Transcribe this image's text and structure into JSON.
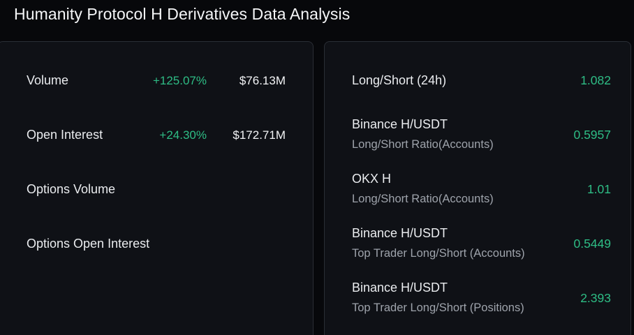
{
  "header": {
    "title": "Humanity Protocol H Derivatives Data Analysis"
  },
  "colors": {
    "positive": "#2ebd85",
    "background": "#07080b",
    "panel": "#0f1116",
    "text_secondary": "#9ea3ab"
  },
  "market": {
    "rows": [
      {
        "label": "Volume",
        "change": "+125.07%",
        "value": "$76.13M"
      },
      {
        "label": "Open Interest",
        "change": "+24.30%",
        "value": "$172.71M"
      },
      {
        "label": "Options Volume",
        "change": "",
        "value": ""
      },
      {
        "label": "Options Open Interest",
        "change": "",
        "value": ""
      }
    ]
  },
  "ratios": {
    "rows": [
      {
        "title": "Long/Short (24h)",
        "subtitle": "",
        "value": "1.082"
      },
      {
        "title": "Binance H/USDT",
        "subtitle": "Long/Short Ratio(Accounts)",
        "value": "0.5957"
      },
      {
        "title": "OKX H",
        "subtitle": "Long/Short Ratio(Accounts)",
        "value": "1.01"
      },
      {
        "title": "Binance H/USDT",
        "subtitle": "Top Trader Long/Short (Accounts)",
        "value": "0.5449"
      },
      {
        "title": "Binance H/USDT",
        "subtitle": "Top Trader Long/Short (Positions)",
        "value": "2.393"
      }
    ]
  }
}
